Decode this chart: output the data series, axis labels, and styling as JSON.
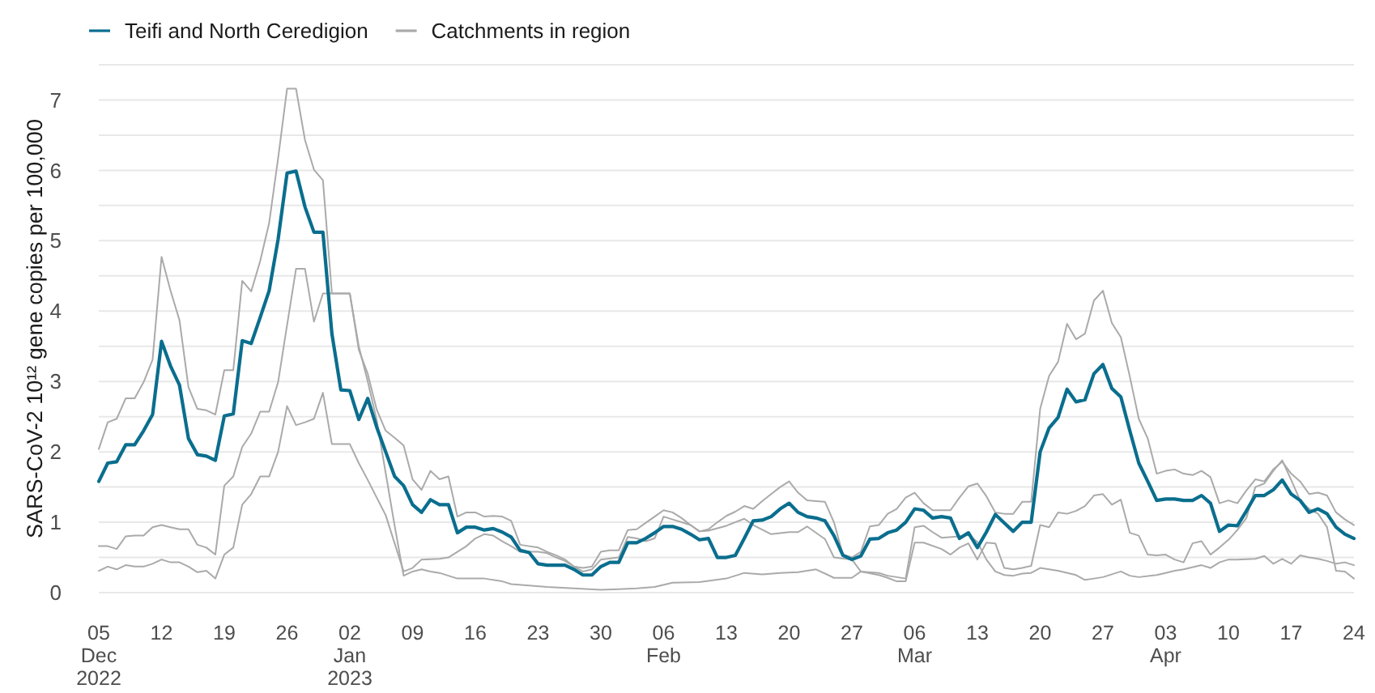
{
  "chart_data": {
    "type": "line",
    "ylabel": "SARS-CoV-2 10¹² gene copies per 100,000",
    "x": [
      "2022-12-05",
      "2022-12-06",
      "2022-12-07",
      "2022-12-08",
      "2022-12-09",
      "2022-12-10",
      "2022-12-11",
      "2022-12-12",
      "2022-12-13",
      "2022-12-14",
      "2022-12-15",
      "2022-12-16",
      "2022-12-17",
      "2022-12-18",
      "2022-12-19",
      "2022-12-20",
      "2022-12-21",
      "2022-12-22",
      "2022-12-23",
      "2022-12-24",
      "2022-12-25",
      "2022-12-26",
      "2022-12-27",
      "2022-12-28",
      "2022-12-29",
      "2022-12-30",
      "2022-12-31",
      "2023-01-01",
      "2023-01-02",
      "2023-01-03",
      "2023-01-04",
      "2023-01-05",
      "2023-01-06",
      "2023-01-07",
      "2023-01-08",
      "2023-01-09",
      "2023-01-10",
      "2023-01-11",
      "2023-01-12",
      "2023-01-13",
      "2023-01-14",
      "2023-01-15",
      "2023-01-16",
      "2023-01-17",
      "2023-01-18",
      "2023-01-19",
      "2023-01-20",
      "2023-01-21",
      "2023-01-22",
      "2023-01-23",
      "2023-01-24",
      "2023-01-25",
      "2023-01-26",
      "2023-01-27",
      "2023-01-28",
      "2023-01-29",
      "2023-01-30",
      "2023-01-31",
      "2023-02-01",
      "2023-02-02",
      "2023-02-03",
      "2023-02-04",
      "2023-02-05",
      "2023-02-06",
      "2023-02-07",
      "2023-02-08",
      "2023-02-09",
      "2023-02-10",
      "2023-02-11",
      "2023-02-12",
      "2023-02-13",
      "2023-02-14",
      "2023-02-15",
      "2023-02-16",
      "2023-02-17",
      "2023-02-18",
      "2023-02-19",
      "2023-02-20",
      "2023-02-21",
      "2023-02-22",
      "2023-02-23",
      "2023-02-24",
      "2023-02-25",
      "2023-02-26",
      "2023-02-27",
      "2023-02-28",
      "2023-03-01",
      "2023-03-02",
      "2023-03-03",
      "2023-03-04",
      "2023-03-05",
      "2023-03-06",
      "2023-03-07",
      "2023-03-08",
      "2023-03-09",
      "2023-03-10",
      "2023-03-11",
      "2023-03-12",
      "2023-03-13",
      "2023-03-14",
      "2023-03-15",
      "2023-03-16",
      "2023-03-17",
      "2023-03-18",
      "2023-03-19",
      "2023-03-20",
      "2023-03-21",
      "2023-03-22",
      "2023-03-23",
      "2023-03-24",
      "2023-03-25",
      "2023-03-26",
      "2023-03-27",
      "2023-03-28",
      "2023-03-29",
      "2023-03-30",
      "2023-03-31",
      "2023-04-01",
      "2023-04-02",
      "2023-04-03",
      "2023-04-04",
      "2023-04-05",
      "2023-04-06",
      "2023-04-07",
      "2023-04-08",
      "2023-04-09",
      "2023-04-10",
      "2023-04-11",
      "2023-04-12",
      "2023-04-13",
      "2023-04-14",
      "2023-04-15",
      "2023-04-16",
      "2023-04-17",
      "2023-04-18",
      "2023-04-19",
      "2023-04-20",
      "2023-04-21",
      "2023-04-22",
      "2023-04-23",
      "2023-04-24"
    ],
    "xlim": [
      "2022-12-05",
      "2023-04-24"
    ],
    "xticks": [
      {
        "value": "2022-12-05",
        "label": "05\nDec\n2022"
      },
      {
        "value": "2022-12-12",
        "label": "12"
      },
      {
        "value": "2022-12-19",
        "label": "19"
      },
      {
        "value": "2022-12-26",
        "label": "26"
      },
      {
        "value": "2023-01-02",
        "label": "02\nJan\n2023"
      },
      {
        "value": "2023-01-09",
        "label": "09"
      },
      {
        "value": "2023-01-16",
        "label": "16"
      },
      {
        "value": "2023-01-23",
        "label": "23"
      },
      {
        "value": "2023-01-30",
        "label": "30"
      },
      {
        "value": "2023-02-06",
        "label": "06\nFeb"
      },
      {
        "value": "2023-02-13",
        "label": "13"
      },
      {
        "value": "2023-02-20",
        "label": "20"
      },
      {
        "value": "2023-02-27",
        "label": "27"
      },
      {
        "value": "2023-03-06",
        "label": "06\nMar"
      },
      {
        "value": "2023-03-13",
        "label": "13"
      },
      {
        "value": "2023-03-20",
        "label": "20"
      },
      {
        "value": "2023-03-27",
        "label": "27"
      },
      {
        "value": "2023-04-03",
        "label": "03\nApr"
      },
      {
        "value": "2023-04-10",
        "label": "10"
      },
      {
        "value": "2023-04-17",
        "label": "17"
      },
      {
        "value": "2023-04-24",
        "label": "24"
      }
    ],
    "ylim": [
      0,
      7.5
    ],
    "yticks": [
      0,
      {
        "value": 0.5,
        "label": null
      },
      1,
      {
        "value": 1.5,
        "label": null
      },
      2,
      {
        "value": 2.5,
        "label": null
      },
      3,
      {
        "value": 3.5,
        "label": null
      },
      4,
      {
        "value": 4.5,
        "label": null
      },
      5,
      {
        "value": 5.5,
        "label": null
      },
      6,
      {
        "value": 6.5,
        "label": null
      },
      7,
      {
        "value": 7.5,
        "label": null
      }
    ],
    "grid": "y",
    "legend": "top left",
    "series": [
      {
        "name": "Teifi and North Ceredigion",
        "color": "#0a6e8e",
        "values": [
          1.58,
          1.84,
          1.86,
          2.1,
          2.1,
          2.3,
          2.53,
          3.57,
          3.22,
          2.95,
          2.19,
          1.96,
          1.94,
          1.88,
          2.51,
          2.54,
          3.58,
          3.54,
          3.91,
          4.29,
          5.02,
          5.96,
          5.99,
          5.48,
          5.12,
          5.12,
          3.68,
          2.88,
          2.87,
          2.46,
          2.76,
          2.35,
          2.0,
          1.65,
          1.52,
          1.25,
          1.14,
          1.32,
          1.25,
          1.25,
          0.85,
          0.93,
          0.93,
          0.89,
          0.91,
          0.86,
          0.79,
          0.6,
          0.57,
          0.41,
          0.39,
          0.39,
          0.39,
          0.33,
          0.25,
          0.25,
          0.37,
          0.43,
          0.43,
          0.71,
          0.71,
          0.77,
          0.85,
          0.94,
          0.94,
          0.9,
          0.83,
          0.75,
          0.77,
          0.5,
          0.5,
          0.53,
          0.77,
          1.02,
          1.03,
          1.08,
          1.19,
          1.27,
          1.14,
          1.08,
          1.06,
          1.02,
          0.81,
          0.53,
          0.47,
          0.52,
          0.76,
          0.77,
          0.85,
          0.89,
          1.0,
          1.19,
          1.17,
          1.06,
          1.08,
          1.06,
          0.77,
          0.85,
          0.64,
          0.86,
          1.11,
          0.99,
          0.87,
          1.0,
          1.0,
          2.0,
          2.34,
          2.49,
          2.89,
          2.71,
          2.74,
          3.11,
          3.24,
          2.9,
          2.78,
          2.3,
          1.84,
          1.58,
          1.31,
          1.33,
          1.33,
          1.31,
          1.31,
          1.38,
          1.27,
          0.87,
          0.96,
          0.95,
          1.16,
          1.38,
          1.38,
          1.46,
          1.6,
          1.4,
          1.31,
          1.14,
          1.19,
          1.12,
          0.93,
          0.83,
          0.77
        ]
      },
      {
        "name": "Catchments in region",
        "color": "#aaaaaa",
        "values": [
          2.04,
          2.42,
          2.47,
          2.76,
          2.76,
          2.99,
          3.31,
          4.77,
          4.29,
          3.87,
          2.92,
          2.61,
          2.59,
          2.53,
          3.16,
          3.16,
          4.43,
          4.28,
          4.71,
          5.25,
          6.17,
          7.16,
          7.16,
          6.43,
          6.01,
          5.86,
          4.25,
          4.25,
          4.25,
          3.45,
          3.11,
          2.6,
          2.3,
          2.2,
          2.09,
          1.61,
          1.46,
          1.73,
          1.61,
          1.65,
          1.08,
          1.14,
          1.14,
          1.08,
          1.09,
          1.08,
          1.02,
          0.68,
          0.66,
          0.64,
          0.58,
          0.53,
          0.47,
          0.37,
          0.35,
          0.37,
          0.58,
          0.6,
          0.6,
          0.89,
          0.9,
          0.99,
          1.08,
          1.17,
          1.14,
          1.06,
          0.96,
          0.87,
          0.9,
          1.0,
          1.09,
          1.15,
          1.23,
          1.19,
          1.3,
          1.4,
          1.5,
          1.58,
          1.42,
          1.31,
          1.3,
          1.29,
          1.0,
          0.54,
          0.5,
          0.58,
          0.94,
          0.96,
          1.12,
          1.19,
          1.35,
          1.42,
          1.27,
          1.17,
          1.17,
          1.17,
          1.35,
          1.51,
          1.55,
          1.37,
          1.14,
          1.12,
          1.12,
          1.29,
          1.29,
          2.61,
          3.08,
          3.28,
          3.82,
          3.6,
          3.68,
          4.15,
          4.29,
          3.83,
          3.63,
          3.07,
          2.47,
          2.19,
          1.69,
          1.73,
          1.75,
          1.69,
          1.67,
          1.73,
          1.64,
          1.27,
          1.31,
          1.27,
          1.45,
          1.61,
          1.58,
          1.75,
          1.86,
          1.69,
          1.58,
          1.4,
          1.42,
          1.38,
          1.14,
          1.04,
          0.96
        ]
      },
      {
        "color": "#aaaaaa",
        "x": [
          "2022-12-05",
          "2022-12-06",
          "2022-12-07",
          "2022-12-08",
          "2022-12-09",
          "2022-12-10",
          "2022-12-11",
          "2022-12-12",
          "2022-12-13",
          "2022-12-14",
          "2022-12-15",
          "2022-12-16",
          "2022-12-17",
          "2022-12-18",
          "2022-12-19",
          "2022-12-20",
          "2022-12-21",
          "2022-12-22",
          "2022-12-23",
          "2022-12-24",
          "2022-12-25",
          "2022-12-26",
          "2022-12-27",
          "2022-12-28",
          "2022-12-29",
          "2022-12-30",
          "2023-01-02",
          "2023-01-03",
          "2023-01-04",
          "2023-01-05",
          "2023-01-06",
          "2023-01-07",
          "2023-01-08",
          "2023-01-09",
          "2023-01-10",
          "2023-01-11",
          "2023-01-12",
          "2023-01-13",
          "2023-01-14",
          "2023-01-17",
          "2023-01-19",
          "2023-01-20",
          "2023-01-22",
          "2023-01-24",
          "2023-01-27",
          "2023-01-30",
          "2023-02-01",
          "2023-02-03",
          "2023-02-05",
          "2023-02-07",
          "2023-02-10",
          "2023-02-13",
          "2023-02-15",
          "2023-02-17",
          "2023-02-19",
          "2023-02-21",
          "2023-02-23",
          "2023-02-25",
          "2023-02-27",
          "2023-02-28",
          "2023-03-02",
          "2023-03-03",
          "2023-03-04",
          "2023-03-05",
          "2023-03-06",
          "2023-03-07",
          "2023-03-09",
          "2023-03-10",
          "2023-03-11",
          "2023-03-12",
          "2023-03-13",
          "2023-03-14",
          "2023-03-15",
          "2023-03-16",
          "2023-03-17",
          "2023-03-18",
          "2023-03-19",
          "2023-03-20",
          "2023-03-21",
          "2023-03-22",
          "2023-03-23",
          "2023-03-24",
          "2023-03-25",
          "2023-03-26",
          "2023-03-27",
          "2023-03-28",
          "2023-03-29",
          "2023-03-30",
          "2023-03-31",
          "2023-04-01",
          "2023-04-02",
          "2023-04-03",
          "2023-04-04",
          "2023-04-05",
          "2023-04-06",
          "2023-04-07",
          "2023-04-08",
          "2023-04-09",
          "2023-04-10",
          "2023-04-11",
          "2023-04-12",
          "2023-04-13",
          "2023-04-14",
          "2023-04-15",
          "2023-04-16",
          "2023-04-17",
          "2023-04-18",
          "2023-04-19",
          "2023-04-20",
          "2023-04-21",
          "2023-04-22",
          "2023-04-23",
          "2023-04-24"
        ],
        "values": [
          0.66,
          0.66,
          0.62,
          0.8,
          0.81,
          0.81,
          0.93,
          0.96,
          0.93,
          0.9,
          0.9,
          0.68,
          0.64,
          0.54,
          1.52,
          1.65,
          2.07,
          2.26,
          2.57,
          2.57,
          2.99,
          3.8,
          4.6,
          4.6,
          3.85,
          4.25,
          4.25,
          3.5,
          3.0,
          2.45,
          1.7,
          0.95,
          0.24,
          0.3,
          0.33,
          0.3,
          0.28,
          0.24,
          0.2,
          0.2,
          0.16,
          0.12,
          0.1,
          0.08,
          0.06,
          0.04,
          0.05,
          0.06,
          0.08,
          0.14,
          0.15,
          0.2,
          0.28,
          0.26,
          0.28,
          0.29,
          0.33,
          0.21,
          0.21,
          0.3,
          0.25,
          0.21,
          0.16,
          0.16,
          0.71,
          0.71,
          0.62,
          0.54,
          0.64,
          0.7,
          0.47,
          0.71,
          0.7,
          0.35,
          0.33,
          0.35,
          0.38,
          0.96,
          0.93,
          1.14,
          1.12,
          1.16,
          1.23,
          1.38,
          1.4,
          1.25,
          1.32,
          0.85,
          0.81,
          0.54,
          0.53,
          0.54,
          0.47,
          0.43,
          0.7,
          0.73,
          0.54,
          0.64,
          0.75,
          0.89,
          1.06,
          1.5,
          1.55,
          1.73,
          1.88,
          1.6,
          1.31,
          1.19,
          1.12,
          0.93,
          0.31,
          0.3,
          0.2
        ]
      },
      {
        "color": "#aaaaaa",
        "x": [
          "2022-12-05",
          "2022-12-06",
          "2022-12-07",
          "2022-12-08",
          "2022-12-09",
          "2022-12-10",
          "2022-12-11",
          "2022-12-12",
          "2022-12-13",
          "2022-12-14",
          "2022-12-15",
          "2022-12-16",
          "2022-12-17",
          "2022-12-18",
          "2022-12-19",
          "2022-12-20",
          "2022-12-21",
          "2022-12-22",
          "2022-12-23",
          "2022-12-24",
          "2022-12-25",
          "2022-12-26",
          "2022-12-27",
          "2022-12-28",
          "2022-12-29",
          "2022-12-30",
          "2022-12-31",
          "2023-01-02",
          "2023-01-03",
          "2023-01-04",
          "2023-01-05",
          "2023-01-06",
          "2023-01-07",
          "2023-01-08",
          "2023-01-09",
          "2023-01-10",
          "2023-01-12",
          "2023-01-13",
          "2023-01-14",
          "2023-01-15",
          "2023-01-16",
          "2023-01-17",
          "2023-01-18",
          "2023-01-19",
          "2023-01-20",
          "2023-01-21",
          "2023-01-23",
          "2023-01-24",
          "2023-01-25",
          "2023-01-26",
          "2023-01-27",
          "2023-01-28",
          "2023-01-29",
          "2023-01-30",
          "2023-02-01",
          "2023-02-02",
          "2023-02-03",
          "2023-02-04",
          "2023-02-05",
          "2023-02-06",
          "2023-02-07",
          "2023-02-08",
          "2023-02-09",
          "2023-02-10",
          "2023-02-11",
          "2023-02-13",
          "2023-02-15",
          "2023-02-16",
          "2023-02-18",
          "2023-02-20",
          "2023-02-21",
          "2023-02-22",
          "2023-02-24",
          "2023-02-25",
          "2023-02-27",
          "2023-02-28",
          "2023-03-02",
          "2023-03-03",
          "2023-03-05",
          "2023-03-06",
          "2023-03-07",
          "2023-03-08",
          "2023-03-09",
          "2023-03-11",
          "2023-03-12",
          "2023-03-13",
          "2023-03-14",
          "2023-03-15",
          "2023-03-16",
          "2023-03-17",
          "2023-03-18",
          "2023-03-19",
          "2023-03-20",
          "2023-03-22",
          "2023-03-24",
          "2023-03-25",
          "2023-03-26",
          "2023-03-27",
          "2023-03-29",
          "2023-03-30",
          "2023-03-31",
          "2023-04-02",
          "2023-04-03",
          "2023-04-04",
          "2023-04-05",
          "2023-04-07",
          "2023-04-08",
          "2023-04-09",
          "2023-04-10",
          "2023-04-11",
          "2023-04-13",
          "2023-04-14",
          "2023-04-15",
          "2023-04-16",
          "2023-04-17",
          "2023-04-18",
          "2023-04-19",
          "2023-04-20",
          "2023-04-21",
          "2023-04-22",
          "2023-04-23",
          "2023-04-24"
        ],
        "values": [
          0.31,
          0.37,
          0.33,
          0.39,
          0.37,
          0.37,
          0.41,
          0.47,
          0.43,
          0.43,
          0.37,
          0.29,
          0.31,
          0.2,
          0.54,
          0.64,
          1.25,
          1.4,
          1.65,
          1.65,
          2.0,
          2.65,
          2.38,
          2.42,
          2.47,
          2.84,
          2.11,
          2.11,
          1.84,
          1.6,
          1.35,
          1.1,
          0.7,
          0.3,
          0.35,
          0.47,
          0.48,
          0.5,
          0.58,
          0.66,
          0.77,
          0.83,
          0.81,
          0.73,
          0.66,
          0.58,
          0.58,
          0.56,
          0.5,
          0.45,
          0.37,
          0.3,
          0.33,
          0.47,
          0.5,
          0.79,
          0.77,
          0.73,
          0.77,
          1.08,
          1.04,
          1.0,
          0.96,
          0.87,
          0.88,
          0.95,
          1.05,
          0.96,
          0.83,
          0.86,
          0.86,
          0.94,
          0.76,
          0.5,
          0.47,
          0.3,
          0.28,
          0.24,
          0.2,
          0.93,
          0.95,
          0.86,
          0.78,
          0.8,
          0.82,
          0.72,
          0.47,
          0.3,
          0.25,
          0.24,
          0.27,
          0.28,
          0.35,
          0.31,
          0.25,
          0.18,
          0.2,
          0.22,
          0.3,
          0.24,
          0.22,
          0.25,
          0.28,
          0.31,
          0.33,
          0.39,
          0.35,
          0.43,
          0.47,
          0.47,
          0.48,
          0.52,
          0.41,
          0.48,
          0.41,
          0.53,
          0.5,
          0.48,
          0.45,
          0.41,
          0.43,
          0.39
        ]
      }
    ]
  }
}
